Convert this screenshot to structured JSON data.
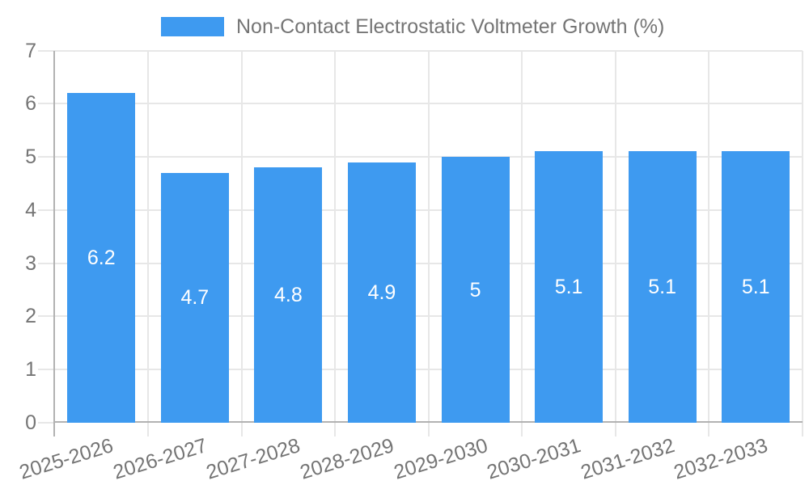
{
  "chart_data": {
    "type": "bar",
    "title": "",
    "legend": {
      "label": "Non-Contact Electrostatic Voltmeter Growth (%)",
      "position": "top"
    },
    "categories": [
      "2025-2026",
      "2026-2027",
      "2027-2028",
      "2028-2029",
      "2029-2030",
      "2030-2031",
      "2031-2032",
      "2032-2033"
    ],
    "series": [
      {
        "name": "Non-Contact Electrostatic Voltmeter Growth (%)",
        "values": [
          6.2,
          4.7,
          4.8,
          4.9,
          5,
          5.1,
          5.1,
          5.1
        ]
      }
    ],
    "bar_labels": [
      "6.2",
      "4.7",
      "4.8",
      "4.9",
      "5",
      "5.1",
      "5.1",
      "5.1"
    ],
    "xlabel": "",
    "ylabel": "",
    "ylim": [
      0,
      7
    ],
    "yticks": [
      0,
      1,
      2,
      3,
      4,
      5,
      6,
      7
    ],
    "grid": true,
    "colors": {
      "bar": "#3E9AF0",
      "axis_text": "#757575",
      "bar_label_text": "#ffffff",
      "gridline": "#e7e7e7",
      "axis_line": "#b2b2b2",
      "background": "#ffffff"
    }
  }
}
